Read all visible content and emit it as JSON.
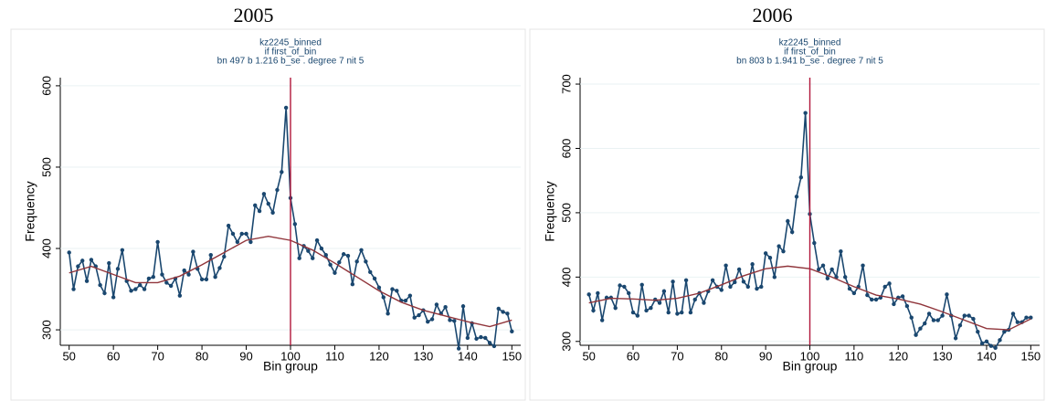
{
  "chart_data": [
    {
      "type": "line",
      "title": "2005",
      "subtitle": [
        "kz2245_binned",
        "if first_of_bin",
        "bn 497 b 1.216 b_se . degree 7 nit 5"
      ],
      "xlabel": "Bin group",
      "ylabel": "Frequency",
      "xlim": [
        48,
        152
      ],
      "ylim": [
        281,
        610
      ],
      "xticks": [
        50,
        60,
        70,
        80,
        90,
        100,
        110,
        120,
        130,
        140,
        150
      ],
      "yticks": [
        300,
        400,
        500,
        600
      ],
      "vline": 100,
      "vline_color": "#b0163a",
      "x": [
        50,
        51,
        52,
        53,
        54,
        55,
        56,
        57,
        58,
        59,
        60,
        61,
        62,
        63,
        64,
        65,
        66,
        67,
        68,
        69,
        70,
        71,
        72,
        73,
        74,
        75,
        76,
        77,
        78,
        79,
        80,
        81,
        82,
        83,
        84,
        85,
        86,
        87,
        88,
        89,
        90,
        91,
        92,
        93,
        94,
        95,
        96,
        97,
        98,
        99,
        100,
        101,
        102,
        103,
        104,
        105,
        106,
        107,
        108,
        109,
        110,
        111,
        112,
        113,
        114,
        115,
        116,
        117,
        118,
        119,
        120,
        121,
        122,
        123,
        124,
        125,
        126,
        127,
        128,
        129,
        130,
        131,
        132,
        133,
        134,
        135,
        136,
        137,
        138,
        139,
        140,
        141,
        142,
        143,
        144,
        145,
        146,
        147,
        148,
        149,
        150
      ],
      "series": [
        {
          "color": "#1a476f",
          "markers": true,
          "values": [
            395,
            350,
            378,
            385,
            360,
            386,
            378,
            355,
            345,
            382,
            340,
            375,
            398,
            360,
            348,
            350,
            355,
            350,
            363,
            365,
            408,
            368,
            358,
            354,
            363,
            342,
            373,
            368,
            396,
            375,
            362,
            362,
            392,
            365,
            376,
            390,
            428,
            418,
            408,
            418,
            418,
            408,
            453,
            446,
            467,
            455,
            444,
            472,
            494,
            573,
            462,
            430,
            388,
            403,
            397,
            388,
            410,
            400,
            392,
            380,
            370,
            383,
            393,
            391,
            356,
            384,
            398,
            384,
            371,
            363,
            352,
            340,
            320,
            350,
            348,
            336,
            336,
            342,
            315,
            318,
            324,
            310,
            313,
            331,
            320,
            328,
            312,
            311,
            277,
            329,
            290,
            308,
            289,
            291,
            290,
            284,
            280,
            326,
            322,
            320,
            298
          ]
        },
        {
          "color": "#90353b",
          "markers": false,
          "x": [
            50,
            55,
            60,
            65,
            70,
            75,
            80,
            85,
            90,
            95,
            100,
            105,
            110,
            115,
            120,
            125,
            130,
            135,
            140,
            145,
            150
          ],
          "values": [
            370,
            378,
            368,
            358,
            358,
            366,
            380,
            395,
            410,
            415,
            410,
            398,
            382,
            365,
            348,
            334,
            324,
            317,
            310,
            304,
            312
          ]
        }
      ]
    },
    {
      "type": "line",
      "title": "2006",
      "subtitle": [
        "kz2245_binned",
        "if first_of_bin",
        "bn 803 b 1.941 b_se . degree 7 nit 5"
      ],
      "xlabel": "Bin group",
      "ylabel": "Frequency",
      "xlim": [
        48,
        152
      ],
      "ylim": [
        294,
        710
      ],
      "xticks": [
        50,
        60,
        70,
        80,
        90,
        100,
        110,
        120,
        130,
        140,
        150
      ],
      "yticks": [
        300,
        400,
        500,
        600,
        700
      ],
      "vline": 100,
      "vline_color": "#b0163a",
      "x": [
        50,
        51,
        52,
        53,
        54,
        55,
        56,
        57,
        58,
        59,
        60,
        61,
        62,
        63,
        64,
        65,
        66,
        67,
        68,
        69,
        70,
        71,
        72,
        73,
        74,
        75,
        76,
        77,
        78,
        79,
        80,
        81,
        82,
        83,
        84,
        85,
        86,
        87,
        88,
        89,
        90,
        91,
        92,
        93,
        94,
        95,
        96,
        97,
        98,
        99,
        100,
        101,
        102,
        103,
        104,
        105,
        106,
        107,
        108,
        109,
        110,
        111,
        112,
        113,
        114,
        115,
        116,
        117,
        118,
        119,
        120,
        121,
        122,
        123,
        124,
        125,
        126,
        127,
        128,
        129,
        130,
        131,
        132,
        133,
        134,
        135,
        136,
        137,
        138,
        139,
        140,
        141,
        142,
        143,
        144,
        145,
        146,
        147,
        148,
        149,
        150
      ],
      "series": [
        {
          "color": "#1a476f",
          "markers": true,
          "values": [
            373,
            348,
            375,
            333,
            368,
            368,
            352,
            387,
            385,
            375,
            345,
            340,
            388,
            348,
            352,
            365,
            360,
            378,
            345,
            393,
            343,
            345,
            395,
            345,
            365,
            375,
            360,
            378,
            395,
            385,
            380,
            418,
            385,
            392,
            412,
            393,
            385,
            420,
            382,
            385,
            437,
            430,
            400,
            448,
            440,
            487,
            470,
            525,
            555,
            655,
            498,
            453,
            412,
            418,
            398,
            412,
            400,
            440,
            400,
            382,
            375,
            385,
            418,
            372,
            365,
            365,
            368,
            385,
            390,
            358,
            368,
            370,
            355,
            337,
            310,
            320,
            328,
            343,
            333,
            333,
            340,
            373,
            340,
            305,
            325,
            340,
            340,
            335,
            315,
            297,
            300,
            293,
            290,
            302,
            315,
            318,
            343,
            330,
            330,
            337,
            337
          ]
        },
        {
          "color": "#90353b",
          "markers": false,
          "x": [
            50,
            55,
            60,
            65,
            70,
            75,
            80,
            85,
            90,
            95,
            100,
            105,
            110,
            115,
            120,
            125,
            130,
            135,
            140,
            145,
            150
          ],
          "values": [
            360,
            367,
            366,
            364,
            367,
            375,
            388,
            402,
            413,
            417,
            413,
            400,
            385,
            372,
            366,
            358,
            346,
            333,
            320,
            318,
            335
          ]
        }
      ]
    }
  ]
}
